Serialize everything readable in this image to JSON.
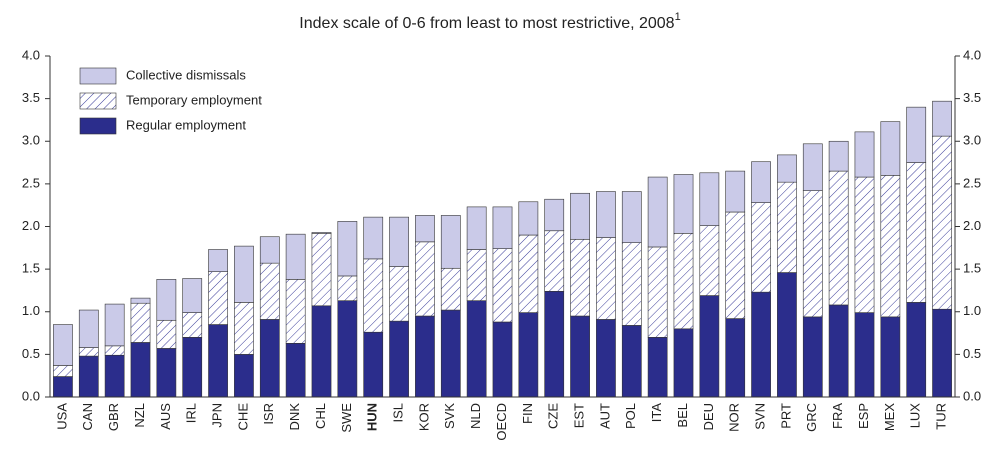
{
  "chart_data": {
    "type": "stacked-bar",
    "title": "Index scale of 0-6 from least to most restrictive, 2008",
    "title_footnote": "1",
    "categories": [
      "USA",
      "CAN",
      "GBR",
      "NZL",
      "AUS",
      "IRL",
      "JPN",
      "CHE",
      "ISR",
      "DNK",
      "CHL",
      "SWE",
      "HUN",
      "ISL",
      "KOR",
      "SVK",
      "NLD",
      "OECD",
      "FIN",
      "CZE",
      "EST",
      "AUT",
      "POL",
      "ITA",
      "BEL",
      "DEU",
      "NOR",
      "SVN",
      "PRT",
      "GRC",
      "FRA",
      "ESP",
      "MEX",
      "LUX",
      "TUR"
    ],
    "highlight_index": 12,
    "series": [
      {
        "name": "Regular employment",
        "color": "#2b2d8c",
        "pattern": "solid",
        "values": [
          0.24,
          0.48,
          0.49,
          0.64,
          0.57,
          0.7,
          0.85,
          0.5,
          0.91,
          0.63,
          1.07,
          1.13,
          0.76,
          0.89,
          0.95,
          1.02,
          1.13,
          0.88,
          0.99,
          1.24,
          0.95,
          0.91,
          0.84,
          0.7,
          0.8,
          1.19,
          0.92,
          1.23,
          1.46,
          0.94,
          1.08,
          0.99,
          0.94,
          1.11,
          1.03
        ]
      },
      {
        "name": "Temporary employment",
        "color": "#3b3d9a",
        "pattern": "hatch",
        "values": [
          0.13,
          0.1,
          0.11,
          0.46,
          0.33,
          0.29,
          0.62,
          0.61,
          0.66,
          0.75,
          0.85,
          0.29,
          0.86,
          0.64,
          0.87,
          0.49,
          0.6,
          0.86,
          0.91,
          0.71,
          0.9,
          0.96,
          0.97,
          1.06,
          1.12,
          0.82,
          1.25,
          1.05,
          1.06,
          1.48,
          1.57,
          1.59,
          1.66,
          1.64,
          2.03
        ]
      },
      {
        "name": "Collective dismissals",
        "color": "#cacae8",
        "pattern": "solid",
        "values": [
          0.48,
          0.44,
          0.49,
          0.06,
          0.48,
          0.4,
          0.26,
          0.66,
          0.31,
          0.53,
          0.01,
          0.64,
          0.49,
          0.58,
          0.31,
          0.62,
          0.5,
          0.49,
          0.39,
          0.37,
          0.54,
          0.54,
          0.6,
          0.82,
          0.69,
          0.62,
          0.48,
          0.48,
          0.32,
          0.55,
          0.35,
          0.53,
          0.63,
          0.65,
          0.41
        ]
      }
    ],
    "ylim": [
      0,
      4
    ],
    "yticks": [
      {
        "value": 0,
        "label": "0.0"
      },
      {
        "value": 0.5,
        "label": "0.5"
      },
      {
        "value": 1,
        "label": "1.0"
      },
      {
        "value": 1.5,
        "label": "1.5"
      },
      {
        "value": 2,
        "label": "2.0"
      },
      {
        "value": 2.5,
        "label": "2.5"
      },
      {
        "value": 3,
        "label": "3.0"
      },
      {
        "value": 3.5,
        "label": "3.5"
      },
      {
        "value": 4,
        "label": "4.0"
      }
    ],
    "right_axis_mirror": true,
    "legend": "upper-left",
    "grid": false
  }
}
